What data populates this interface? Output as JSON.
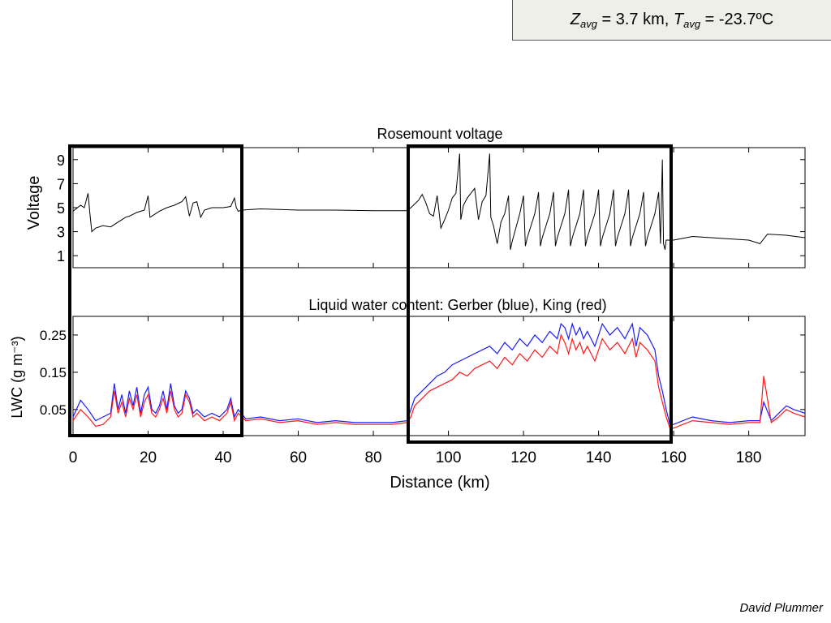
{
  "header": {
    "z_symbol": "Z",
    "z_sub": "avg",
    "z_text": " = 3.7 km, ",
    "t_symbol": "T",
    "t_sub": "avg",
    "t_text": " = -23.7ºC"
  },
  "credit": "David Plummer",
  "colors": {
    "voltage": "#000000",
    "gerber": "#1a1aff",
    "king": "#ff1a1a",
    "frame": "#000000"
  },
  "chart_data": [
    {
      "type": "line",
      "title": "Rosemount voltage",
      "xlabel": "",
      "ylabel": "Voltage",
      "xlim": [
        0,
        195
      ],
      "ylim": [
        0,
        10
      ],
      "yticks": [
        "1",
        "3",
        "5",
        "7",
        "9"
      ],
      "grid": false,
      "series": [
        {
          "x": [
            0,
            2,
            3,
            4,
            4.5,
            5,
            6,
            8,
            10,
            12,
            14,
            15,
            17,
            19,
            20,
            20.5,
            21,
            23,
            25,
            27,
            29,
            30,
            31,
            32,
            33,
            34,
            35,
            37,
            40,
            42,
            43,
            43.5,
            44,
            45,
            50,
            60,
            70,
            80,
            89,
            90,
            92,
            93,
            94,
            95,
            96,
            97,
            98,
            99,
            100,
            101,
            102,
            103,
            103.3,
            104,
            105,
            107,
            108,
            109,
            110,
            111,
            111.3,
            112,
            113,
            114,
            115,
            116,
            116.5,
            117,
            119,
            120,
            120.5,
            121,
            123,
            124,
            124.5,
            125,
            127,
            128,
            128.5,
            129,
            131,
            132,
            132.5,
            133,
            135,
            136,
            136.5,
            137,
            139,
            140,
            140.5,
            141,
            143,
            144,
            144.5,
            145,
            147,
            148,
            148.5,
            149,
            151,
            152,
            152.5,
            153,
            155,
            156,
            156.5,
            157,
            157.3,
            157.7,
            158,
            160,
            165,
            170,
            175,
            180,
            182,
            183,
            185,
            190,
            195
          ],
          "y": [
            4.7,
            5.2,
            5.0,
            6.2,
            4.5,
            3.0,
            3.3,
            3.5,
            3.4,
            3.8,
            4.2,
            4.3,
            4.6,
            4.8,
            6.0,
            4.2,
            4.3,
            4.7,
            5.0,
            5.2,
            5.5,
            5.9,
            4.3,
            5.4,
            5.5,
            4.2,
            4.8,
            5.0,
            5.0,
            5.1,
            5.8,
            5.0,
            4.7,
            4.8,
            4.9,
            4.8,
            4.8,
            4.75,
            4.75,
            5.0,
            5.6,
            6.1,
            5.4,
            4.5,
            4.3,
            6.0,
            3.3,
            4.0,
            4.8,
            5.8,
            6.2,
            9.5,
            4.0,
            5.2,
            5.8,
            6.6,
            4.0,
            5.5,
            6.0,
            9.5,
            4.2,
            3.5,
            2.0,
            3.8,
            4.5,
            6.0,
            1.5,
            2.2,
            4.5,
            6.0,
            1.8,
            2.5,
            4.5,
            6.3,
            1.8,
            2.5,
            4.5,
            6.3,
            1.8,
            2.5,
            4.5,
            6.5,
            1.8,
            2.5,
            4.5,
            6.5,
            1.8,
            2.5,
            4.5,
            6.5,
            1.8,
            2.5,
            4.5,
            6.5,
            1.8,
            2.5,
            4.5,
            6.5,
            1.8,
            2.5,
            4.5,
            6.3,
            1.8,
            2.5,
            4.5,
            6.3,
            2.0,
            9.0,
            2.0,
            1.5,
            2.3,
            2.3,
            2.6,
            2.5,
            2.4,
            2.3,
            2.1,
            2.0,
            2.8,
            2.7,
            2.5
          ]
        }
      ]
    },
    {
      "type": "line",
      "title": "Liquid water content: Gerber (blue), King (red)",
      "xlabel": "Distance (km)",
      "ylabel": "LWC (g m⁻³)",
      "xlim": [
        0,
        195
      ],
      "ylim": [
        -0.02,
        0.3
      ],
      "xticks": [
        "0",
        "20",
        "40",
        "60",
        "80",
        "100",
        "120",
        "140",
        "160",
        "180"
      ],
      "yticks": [
        "0.25",
        "0.15",
        "0.05"
      ],
      "grid": false,
      "series": [
        {
          "name": "Gerber",
          "x": [
            0,
            2,
            4,
            6,
            8,
            10,
            11,
            12,
            13,
            14,
            15,
            16,
            17,
            18,
            19,
            20,
            21,
            22,
            23,
            24,
            25,
            26,
            27,
            28,
            29,
            30,
            31,
            32,
            33,
            35,
            37,
            39,
            41,
            42,
            43,
            44,
            46,
            50,
            55,
            60,
            65,
            70,
            75,
            80,
            85,
            89,
            90,
            91,
            93,
            95,
            97,
            99,
            101,
            103,
            105,
            107,
            109,
            111,
            113,
            115,
            117,
            119,
            121,
            123,
            125,
            127,
            129,
            130,
            131,
            132,
            133,
            134,
            135,
            136,
            137,
            139,
            141,
            143,
            145,
            147,
            149,
            150,
            151,
            153,
            155,
            156,
            157,
            158,
            159,
            160,
            165,
            170,
            175,
            180,
            183,
            184,
            186,
            188,
            190,
            192,
            195
          ],
          "y": [
            0.03,
            0.075,
            0.05,
            0.02,
            0.03,
            0.04,
            0.12,
            0.05,
            0.09,
            0.04,
            0.1,
            0.06,
            0.11,
            0.04,
            0.09,
            0.11,
            0.05,
            0.04,
            0.06,
            0.1,
            0.05,
            0.12,
            0.06,
            0.04,
            0.05,
            0.1,
            0.08,
            0.04,
            0.05,
            0.03,
            0.04,
            0.03,
            0.05,
            0.08,
            0.03,
            0.05,
            0.025,
            0.03,
            0.02,
            0.025,
            0.015,
            0.02,
            0.015,
            0.015,
            0.015,
            0.02,
            0.05,
            0.08,
            0.1,
            0.12,
            0.14,
            0.15,
            0.17,
            0.18,
            0.19,
            0.2,
            0.21,
            0.22,
            0.2,
            0.23,
            0.21,
            0.24,
            0.22,
            0.25,
            0.23,
            0.26,
            0.24,
            0.28,
            0.27,
            0.24,
            0.28,
            0.25,
            0.27,
            0.24,
            0.26,
            0.22,
            0.28,
            0.25,
            0.27,
            0.24,
            0.28,
            0.22,
            0.27,
            0.25,
            0.21,
            0.14,
            0.1,
            0.05,
            0.01,
            0.01,
            0.03,
            0.02,
            0.015,
            0.02,
            0.02,
            0.07,
            0.02,
            0.04,
            0.06,
            0.05,
            0.04
          ]
        },
        {
          "name": "King",
          "x": [
            0,
            2,
            4,
            6,
            8,
            10,
            11,
            12,
            13,
            14,
            15,
            16,
            17,
            18,
            19,
            20,
            21,
            22,
            23,
            24,
            25,
            26,
            27,
            28,
            29,
            30,
            31,
            32,
            33,
            35,
            37,
            39,
            41,
            42,
            43,
            44,
            46,
            50,
            55,
            60,
            65,
            70,
            75,
            80,
            85,
            89,
            90,
            91,
            93,
            95,
            97,
            99,
            101,
            103,
            105,
            107,
            109,
            111,
            113,
            115,
            117,
            119,
            121,
            123,
            125,
            127,
            129,
            130,
            131,
            132,
            133,
            134,
            135,
            136,
            137,
            139,
            141,
            143,
            145,
            147,
            149,
            150,
            151,
            153,
            155,
            156,
            157,
            158,
            159,
            160,
            165,
            170,
            175,
            180,
            183,
            184,
            186,
            188,
            190,
            192,
            195
          ],
          "y": [
            0.02,
            0.05,
            0.03,
            0.005,
            0.01,
            0.03,
            0.1,
            0.04,
            0.07,
            0.03,
            0.08,
            0.05,
            0.09,
            0.03,
            0.07,
            0.09,
            0.04,
            0.03,
            0.05,
            0.08,
            0.04,
            0.1,
            0.05,
            0.03,
            0.04,
            0.09,
            0.07,
            0.03,
            0.04,
            0.02,
            0.03,
            0.02,
            0.04,
            0.07,
            0.02,
            0.04,
            0.02,
            0.025,
            0.015,
            0.02,
            0.01,
            0.015,
            0.01,
            0.01,
            0.01,
            0.015,
            0.03,
            0.06,
            0.08,
            0.1,
            0.11,
            0.12,
            0.13,
            0.15,
            0.14,
            0.16,
            0.17,
            0.18,
            0.16,
            0.19,
            0.17,
            0.2,
            0.18,
            0.21,
            0.19,
            0.22,
            0.2,
            0.25,
            0.23,
            0.2,
            0.24,
            0.21,
            0.23,
            0.2,
            0.22,
            0.18,
            0.24,
            0.21,
            0.23,
            0.2,
            0.24,
            0.19,
            0.23,
            0.21,
            0.18,
            0.11,
            0.07,
            0.03,
            0.0,
            0.0,
            0.02,
            0.015,
            0.01,
            0.015,
            0.015,
            0.14,
            0.015,
            0.03,
            0.05,
            0.04,
            0.03
          ]
        }
      ]
    }
  ]
}
